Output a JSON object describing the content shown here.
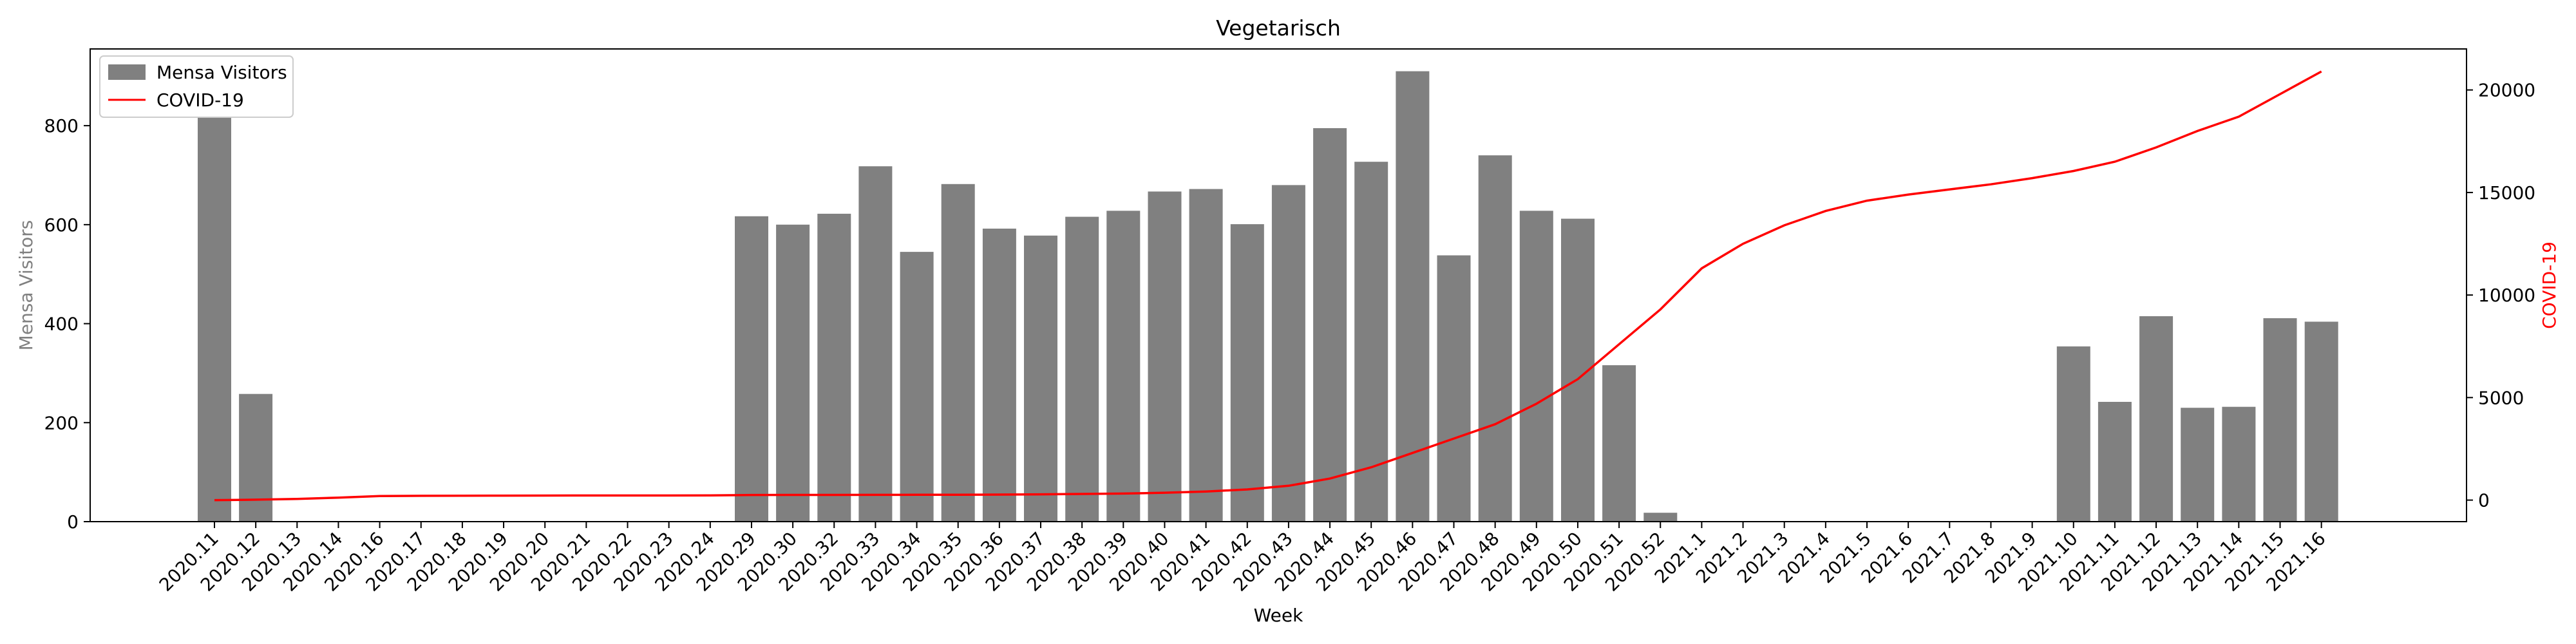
{
  "chart_data": {
    "type": "bar+line",
    "title": "Vegetarisch",
    "xlabel": "Week",
    "ylabel_left": "Mensa Visitors",
    "ylabel_right": "COVID-19",
    "categories": [
      "2020.11",
      "2020.12",
      "2020.13",
      "2020.14",
      "2020.16",
      "2020.17",
      "2020.18",
      "2020.19",
      "2020.20",
      "2020.21",
      "2020.22",
      "2020.23",
      "2020.24",
      "2020.29",
      "2020.30",
      "2020.32",
      "2020.33",
      "2020.34",
      "2020.35",
      "2020.36",
      "2020.37",
      "2020.38",
      "2020.39",
      "2020.40",
      "2020.41",
      "2020.42",
      "2020.43",
      "2020.44",
      "2020.45",
      "2020.46",
      "2020.47",
      "2020.48",
      "2020.49",
      "2020.50",
      "2020.51",
      "2020.52",
      "2021.1",
      "2021.2",
      "2021.3",
      "2021.4",
      "2021.5",
      "2021.6",
      "2021.7",
      "2021.8",
      "2021.9",
      "2021.10",
      "2021.11",
      "2021.12",
      "2021.13",
      "2021.14",
      "2021.15",
      "2021.16"
    ],
    "series": [
      {
        "name": "Mensa Visitors",
        "type": "bar",
        "axis": "left",
        "color": "#808080",
        "values": [
          840,
          258,
          0,
          0,
          0,
          0,
          0,
          0,
          0,
          0,
          0,
          0,
          0,
          617,
          600,
          622,
          718,
          545,
          682,
          592,
          578,
          616,
          628,
          667,
          672,
          601,
          680,
          795,
          727,
          910,
          538,
          740,
          628,
          612,
          316,
          18,
          0,
          0,
          0,
          0,
          0,
          0,
          0,
          0,
          0,
          354,
          242,
          415,
          230,
          232,
          411,
          404
        ]
      },
      {
        "name": "COVID-19",
        "type": "line",
        "axis": "right",
        "color": "#ff0000",
        "values": [
          0,
          20,
          60,
          120,
          200,
          210,
          215,
          220,
          222,
          224,
          225,
          226,
          227,
          250,
          252,
          254,
          256,
          258,
          260,
          270,
          280,
          300,
          320,
          360,
          420,
          520,
          700,
          1050,
          1600,
          2300,
          3000,
          3700,
          4700,
          5900,
          7600,
          9300,
          11300,
          12500,
          13400,
          14100,
          14600,
          14900,
          15150,
          15400,
          15700,
          16050,
          16500,
          17200,
          18000,
          18700,
          19800,
          20900
        ]
      }
    ],
    "ylim_left": [
      0,
      955
    ],
    "yticks_left": [
      0,
      200,
      400,
      600,
      800
    ],
    "ylim_right": [
      -1050,
      22000
    ],
    "yticks_right": [
      0,
      5000,
      10000,
      15000,
      20000
    ],
    "grid": false,
    "legend_position": "upper-left"
  }
}
